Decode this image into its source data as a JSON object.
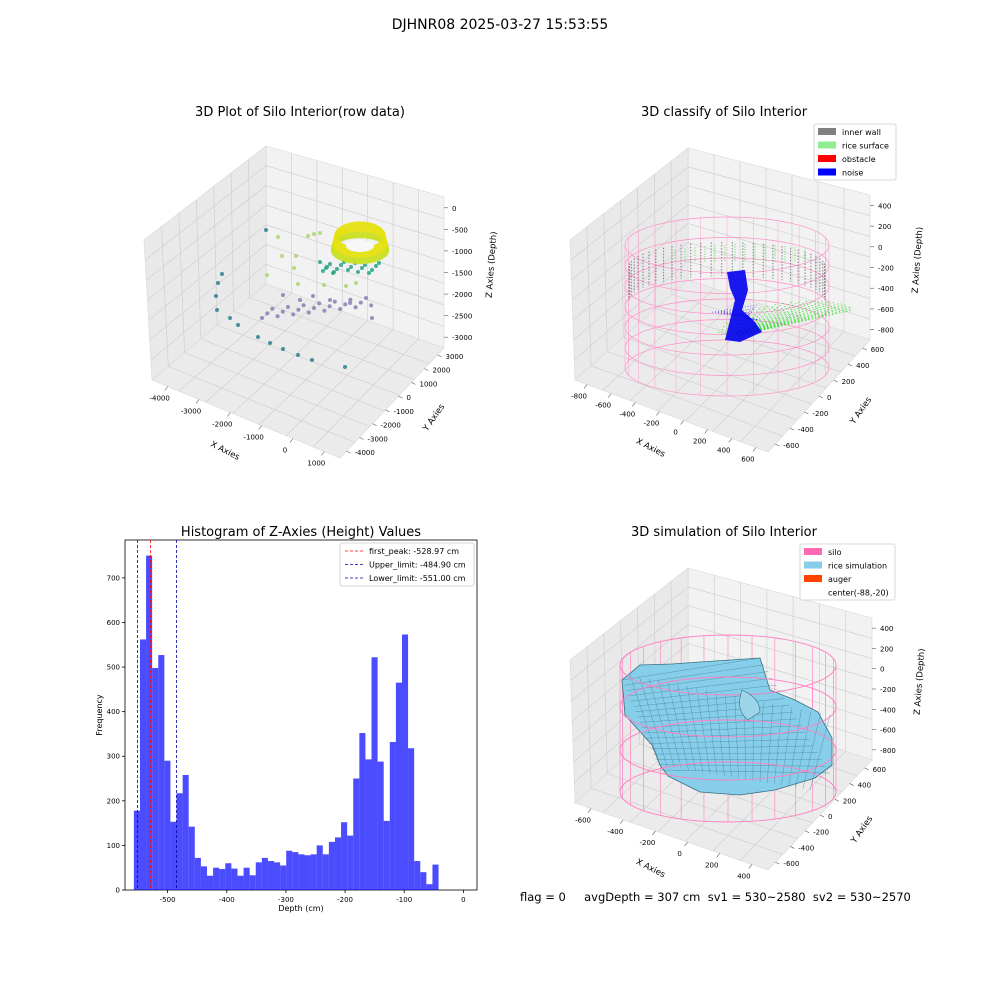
{
  "figure": {
    "suptitle": "DJHNR08 2025-03-27 15:53:55",
    "status_line": "flag = 0     avgDepth = 307 cm  sv1 = 530~2580  sv2 = 530~2570"
  },
  "panels": {
    "raw": {
      "title": "3D Plot of Silo Interior(row data)",
      "xlabel": "X Axies",
      "ylabel": "Y Axies",
      "zlabel": "Z Axies (Depth)",
      "xticks": [
        "-4000",
        "-3000",
        "-2000",
        "-1000",
        "0",
        "1000"
      ],
      "yticks": [
        "-4000",
        "-3000",
        "-2000",
        "-1000",
        "0",
        "1000",
        "2000",
        "3000"
      ],
      "zticks": [
        "0",
        "-500",
        "-1000",
        "-1500",
        "-2000",
        "-2500",
        "-3000"
      ]
    },
    "classify": {
      "title": "3D classify of Silo Interior",
      "xlabel": "X Axies",
      "ylabel": "Y Axies",
      "zlabel": "Z Axies (Depth)",
      "xticks": [
        "-800",
        "-600",
        "-400",
        "-200",
        "0",
        "200",
        "400",
        "600"
      ],
      "yticks": [
        "-600",
        "-400",
        "-200",
        "0",
        "200",
        "400",
        "600"
      ],
      "zticks": [
        "400",
        "200",
        "0",
        "-200",
        "-400",
        "-600",
        "-800"
      ],
      "legend": [
        {
          "label": "inner wall",
          "color": "#808080"
        },
        {
          "label": "rice surface",
          "color": "#90ee90"
        },
        {
          "label": "obstacle",
          "color": "#ff0000"
        },
        {
          "label": "noise",
          "color": "#0000ff"
        }
      ]
    },
    "simulation": {
      "title": "3D simulation of Silo Interior",
      "xlabel": "X Axies",
      "ylabel": "Y Axies",
      "zlabel": "Z Axies (Depth)",
      "xticks": [
        "-600",
        "-400",
        "-200",
        "0",
        "200",
        "400"
      ],
      "yticks": [
        "-600",
        "-400",
        "-200",
        "0",
        "200",
        "400",
        "600"
      ],
      "zticks": [
        "400",
        "200",
        "0",
        "-200",
        "-400",
        "-600",
        "-800"
      ],
      "legend": [
        {
          "label": "silo",
          "color": "#ff69b4"
        },
        {
          "label": "rice simulation",
          "color": "#87ceeb"
        },
        {
          "label": "auger",
          "color": "#ff4500"
        },
        {
          "label": "center(-88,-20)",
          "color": "none"
        }
      ]
    }
  },
  "chart_data": [
    {
      "type": "scatter",
      "title": "3D Plot of Silo Interior(row data)",
      "xlabel": "X Axies",
      "ylabel": "Y Axies",
      "zlabel": "Z Axies (Depth)",
      "xlim": [
        -4500,
        1200
      ],
      "ylim": [
        -4500,
        3500
      ],
      "zlim": [
        -3000,
        0
      ]
    },
    {
      "type": "scatter",
      "title": "3D classify of Silo Interior",
      "xlabel": "X Axies",
      "ylabel": "Y Axies",
      "zlabel": "Z Axies (Depth)",
      "xlim": [
        -850,
        650
      ],
      "ylim": [
        -650,
        650
      ],
      "zlim": [
        -900,
        450
      ],
      "series": [
        {
          "name": "inner wall"
        },
        {
          "name": "rice surface"
        },
        {
          "name": "obstacle"
        },
        {
          "name": "noise"
        }
      ]
    },
    {
      "type": "bar",
      "title": "Histogram of Z-Axies (Height) Values",
      "xlabel": "Depth (cm)",
      "ylabel": "Frequency",
      "xlim": [
        -572,
        23
      ],
      "ylim": [
        0,
        785
      ],
      "xticks": [
        -500,
        -400,
        -300,
        -200,
        -100,
        0
      ],
      "yticks": [
        0,
        100,
        200,
        300,
        400,
        500,
        600,
        700
      ],
      "bin_start": -557,
      "bin_width": 10.3,
      "values": [
        178,
        562,
        750,
        498,
        527,
        290,
        153,
        217,
        258,
        142,
        72,
        53,
        32,
        50,
        47,
        60,
        48,
        32,
        50,
        33,
        62,
        72,
        65,
        62,
        55,
        88,
        85,
        80,
        78,
        80,
        100,
        80,
        108,
        118,
        152,
        122,
        250,
        352,
        293,
        522,
        288,
        155,
        332,
        465,
        573,
        318,
        65,
        40,
        13,
        57
      ],
      "vlines": [
        {
          "name": "first_peak: -528.97 cm",
          "x": -528.97,
          "color": "#ff0000"
        },
        {
          "name": "Upper_limit: -484.90 cm",
          "x": -484.9,
          "color": "#0000aa"
        },
        {
          "name": "Lower_limit: -551.00 cm",
          "x": -551.0,
          "color": "#0000aa"
        }
      ]
    },
    {
      "type": "surface",
      "title": "3D simulation of Silo Interior",
      "xlabel": "X Axies",
      "ylabel": "Y Axies",
      "zlabel": "Z Axies (Depth)",
      "xlim": [
        -750,
        550
      ],
      "ylim": [
        -700,
        700
      ],
      "zlim": [
        -900,
        450
      ],
      "series": [
        {
          "name": "silo"
        },
        {
          "name": "rice simulation"
        },
        {
          "name": "auger"
        }
      ]
    }
  ]
}
